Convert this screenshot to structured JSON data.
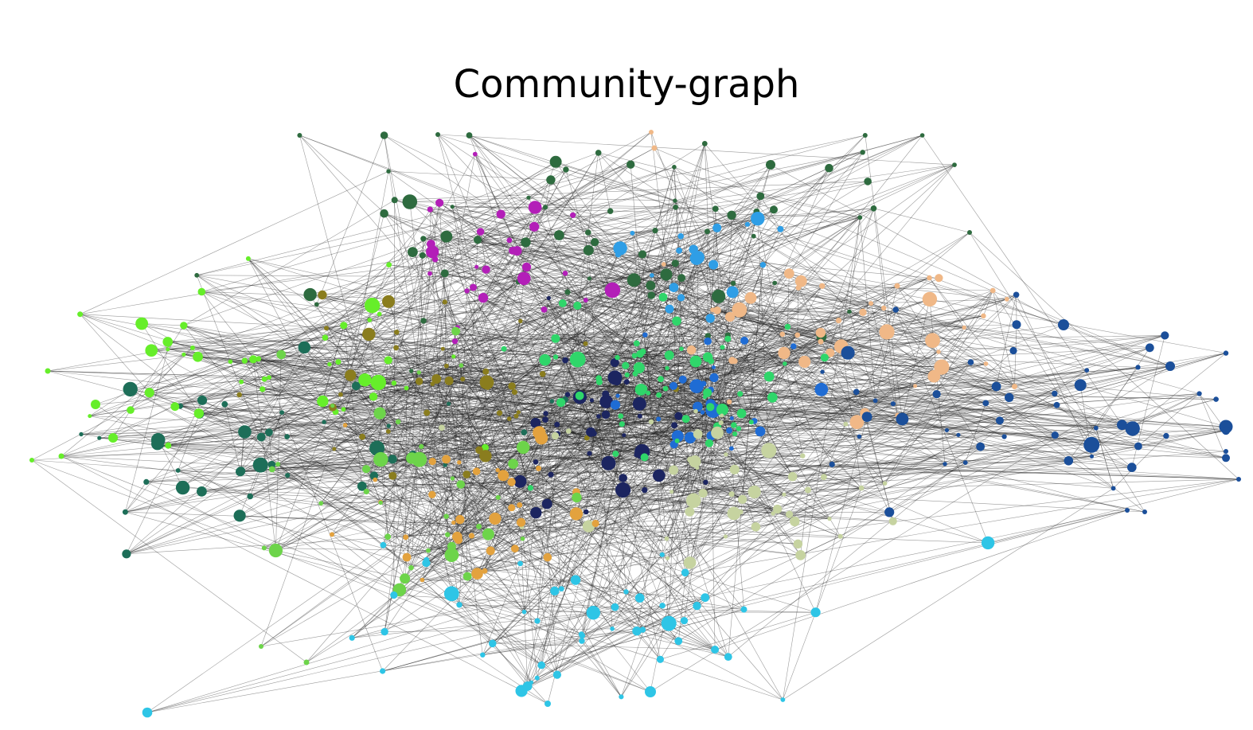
{
  "title": "Community-graph",
  "graph": {
    "edge_color": "#333333",
    "communities": [
      {
        "name": "dark-green",
        "color": "#2e6b3f"
      },
      {
        "name": "magenta",
        "color": "#b31eb8"
      },
      {
        "name": "sky-blue",
        "color": "#2f9ee6"
      },
      {
        "name": "peach",
        "color": "#f0b887"
      },
      {
        "name": "navy-blue",
        "color": "#1b4f9a"
      },
      {
        "name": "teal-green",
        "color": "#1d6e58"
      },
      {
        "name": "lime-green",
        "color": "#66ee2a"
      },
      {
        "name": "olive",
        "color": "#8a7d1e"
      },
      {
        "name": "midnight",
        "color": "#1c2560"
      },
      {
        "name": "royal-blue",
        "color": "#1f6cd4"
      },
      {
        "name": "bright-green",
        "color": "#2fd66a"
      },
      {
        "name": "sage",
        "color": "#c6d3a0"
      },
      {
        "name": "orange",
        "color": "#e3a23e"
      },
      {
        "name": "light-green",
        "color": "#6dd44a"
      },
      {
        "name": "cyan",
        "color": "#2ec5e6"
      }
    ]
  }
}
